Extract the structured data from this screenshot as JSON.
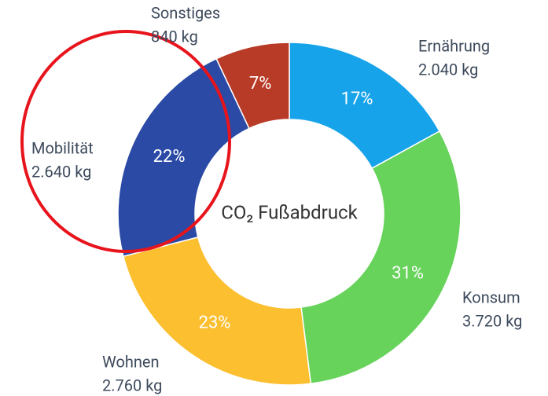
{
  "chart_data": {
    "type": "donut",
    "title": "CO₂ Fußabdruck",
    "categories": [
      "Ernährung",
      "Konsum",
      "Wohnen",
      "Mobilität",
      "Sonstiges"
    ],
    "values": [
      17,
      31,
      23,
      22,
      7
    ],
    "value_labels": [
      "17%",
      "31%",
      "23%",
      "22%",
      "7%"
    ],
    "amount_labels": [
      "2.040 kg",
      "3.720 kg",
      "2.760 kg",
      "2.640 kg",
      "840 kg"
    ],
    "colors": [
      "#17a3ea",
      "#67d35b",
      "#fbbf30",
      "#2a4aa6",
      "#b83b27"
    ]
  }
}
